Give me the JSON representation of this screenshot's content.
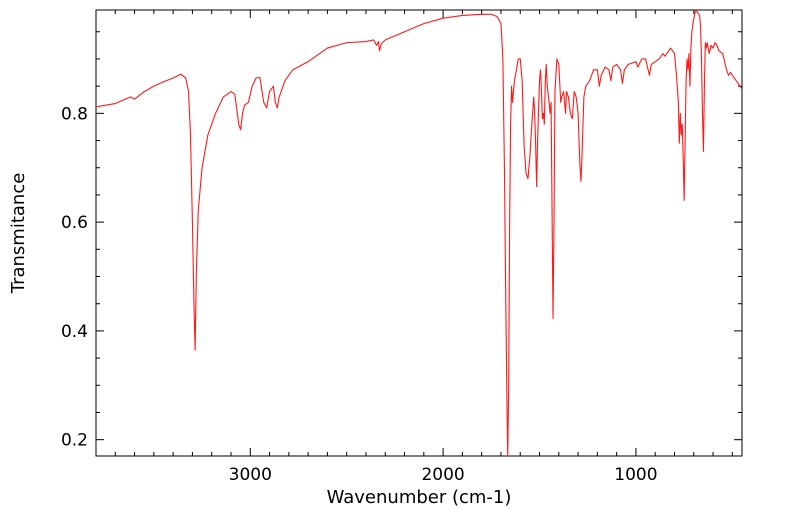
{
  "chart_data": {
    "type": "line",
    "title": "",
    "xlabel": "Wavenumber (cm-1)",
    "ylabel": "Transmitance",
    "xlim": [
      3800,
      450
    ],
    "ylim": [
      0.17,
      0.99
    ],
    "x_reversed": true,
    "grid": false,
    "legend": "none",
    "x_ticks": [
      3000,
      2000,
      1000
    ],
    "x_tick_labels": [
      "3000",
      "2000",
      "1000"
    ],
    "y_ticks": [
      0.2,
      0.4,
      0.6,
      0.8
    ],
    "y_tick_labels": [
      "0.2",
      "0.4",
      "0.6",
      "0.8"
    ],
    "line_color": "#ff1a1a",
    "series": [
      {
        "points": [
          [
            3800,
            0.812
          ],
          [
            3700,
            0.818
          ],
          [
            3650,
            0.826
          ],
          [
            3620,
            0.83
          ],
          [
            3600,
            0.826
          ],
          [
            3550,
            0.84
          ],
          [
            3500,
            0.85
          ],
          [
            3450,
            0.858
          ],
          [
            3400,
            0.865
          ],
          [
            3360,
            0.872
          ],
          [
            3335,
            0.865
          ],
          [
            3320,
            0.84
          ],
          [
            3310,
            0.76
          ],
          [
            3300,
            0.6
          ],
          [
            3292,
            0.45
          ],
          [
            3286,
            0.365
          ],
          [
            3280,
            0.5
          ],
          [
            3270,
            0.62
          ],
          [
            3250,
            0.7
          ],
          [
            3220,
            0.76
          ],
          [
            3180,
            0.8
          ],
          [
            3140,
            0.83
          ],
          [
            3100,
            0.84
          ],
          [
            3080,
            0.835
          ],
          [
            3060,
            0.78
          ],
          [
            3050,
            0.77
          ],
          [
            3040,
            0.8
          ],
          [
            3030,
            0.815
          ],
          [
            3010,
            0.82
          ],
          [
            2990,
            0.85
          ],
          [
            2970,
            0.865
          ],
          [
            2950,
            0.866
          ],
          [
            2930,
            0.82
          ],
          [
            2915,
            0.81
          ],
          [
            2900,
            0.84
          ],
          [
            2880,
            0.85
          ],
          [
            2870,
            0.82
          ],
          [
            2860,
            0.81
          ],
          [
            2850,
            0.83
          ],
          [
            2820,
            0.86
          ],
          [
            2800,
            0.87
          ],
          [
            2780,
            0.88
          ],
          [
            2700,
            0.895
          ],
          [
            2600,
            0.92
          ],
          [
            2500,
            0.93
          ],
          [
            2400,
            0.932
          ],
          [
            2360,
            0.935
          ],
          [
            2345,
            0.925
          ],
          [
            2335,
            0.932
          ],
          [
            2330,
            0.915
          ],
          [
            2320,
            0.928
          ],
          [
            2300,
            0.935
          ],
          [
            2200,
            0.95
          ],
          [
            2100,
            0.965
          ],
          [
            2000,
            0.975
          ],
          [
            1900,
            0.98
          ],
          [
            1800,
            0.982
          ],
          [
            1750,
            0.982
          ],
          [
            1720,
            0.978
          ],
          [
            1700,
            0.965
          ],
          [
            1690,
            0.9
          ],
          [
            1682,
            0.7
          ],
          [
            1676,
            0.49
          ],
          [
            1670,
            0.3
          ],
          [
            1665,
            0.17
          ],
          [
            1660,
            0.3
          ],
          [
            1655,
            0.6
          ],
          [
            1650,
            0.78
          ],
          [
            1645,
            0.85
          ],
          [
            1640,
            0.82
          ],
          [
            1630,
            0.86
          ],
          [
            1620,
            0.88
          ],
          [
            1610,
            0.9
          ],
          [
            1600,
            0.9
          ],
          [
            1590,
            0.86
          ],
          [
            1580,
            0.74
          ],
          [
            1570,
            0.69
          ],
          [
            1560,
            0.68
          ],
          [
            1550,
            0.72
          ],
          [
            1540,
            0.78
          ],
          [
            1530,
            0.83
          ],
          [
            1525,
            0.8
          ],
          [
            1520,
            0.74
          ],
          [
            1515,
            0.665
          ],
          [
            1510,
            0.75
          ],
          [
            1500,
            0.86
          ],
          [
            1495,
            0.88
          ],
          [
            1490,
            0.84
          ],
          [
            1485,
            0.79
          ],
          [
            1480,
            0.8
          ],
          [
            1475,
            0.78
          ],
          [
            1470,
            0.86
          ],
          [
            1465,
            0.89
          ],
          [
            1460,
            0.85
          ],
          [
            1450,
            0.82
          ],
          [
            1445,
            0.8
          ],
          [
            1440,
            0.82
          ],
          [
            1430,
            0.423
          ],
          [
            1425,
            0.6
          ],
          [
            1420,
            0.84
          ],
          [
            1410,
            0.9
          ],
          [
            1400,
            0.89
          ],
          [
            1390,
            0.82
          ],
          [
            1385,
            0.83
          ],
          [
            1375,
            0.84
          ],
          [
            1365,
            0.8
          ],
          [
            1360,
            0.84
          ],
          [
            1350,
            0.83
          ],
          [
            1340,
            0.8
          ],
          [
            1330,
            0.79
          ],
          [
            1320,
            0.84
          ],
          [
            1310,
            0.83
          ],
          [
            1300,
            0.8
          ],
          [
            1290,
            0.7
          ],
          [
            1285,
            0.675
          ],
          [
            1280,
            0.72
          ],
          [
            1270,
            0.83
          ],
          [
            1260,
            0.85
          ],
          [
            1240,
            0.86
          ],
          [
            1220,
            0.88
          ],
          [
            1200,
            0.88
          ],
          [
            1190,
            0.85
          ],
          [
            1180,
            0.87
          ],
          [
            1160,
            0.885
          ],
          [
            1140,
            0.88
          ],
          [
            1130,
            0.86
          ],
          [
            1120,
            0.885
          ],
          [
            1100,
            0.89
          ],
          [
            1080,
            0.88
          ],
          [
            1070,
            0.855
          ],
          [
            1060,
            0.88
          ],
          [
            1040,
            0.89
          ],
          [
            1000,
            0.895
          ],
          [
            990,
            0.885
          ],
          [
            970,
            0.9
          ],
          [
            950,
            0.9
          ],
          [
            930,
            0.87
          ],
          [
            920,
            0.89
          ],
          [
            900,
            0.895
          ],
          [
            880,
            0.9
          ],
          [
            860,
            0.91
          ],
          [
            850,
            0.905
          ],
          [
            840,
            0.91
          ],
          [
            820,
            0.92
          ],
          [
            810,
            0.915
          ],
          [
            800,
            0.91
          ],
          [
            790,
            0.87
          ],
          [
            780,
            0.82
          ],
          [
            775,
            0.745
          ],
          [
            770,
            0.8
          ],
          [
            765,
            0.76
          ],
          [
            760,
            0.78
          ],
          [
            755,
            0.72
          ],
          [
            750,
            0.64
          ],
          [
            745,
            0.75
          ],
          [
            740,
            0.86
          ],
          [
            735,
            0.9
          ],
          [
            730,
            0.88
          ],
          [
            725,
            0.91
          ],
          [
            720,
            0.85
          ],
          [
            715,
            0.92
          ],
          [
            710,
            0.95
          ],
          [
            700,
            0.975
          ],
          [
            690,
            0.99
          ],
          [
            680,
            0.985
          ],
          [
            670,
            0.98
          ],
          [
            665,
            0.96
          ],
          [
            660,
            0.9
          ],
          [
            655,
            0.8
          ],
          [
            650,
            0.73
          ],
          [
            645,
            0.85
          ],
          [
            640,
            0.93
          ],
          [
            635,
            0.92
          ],
          [
            630,
            0.93
          ],
          [
            620,
            0.91
          ],
          [
            610,
            0.925
          ],
          [
            600,
            0.92
          ],
          [
            590,
            0.93
          ],
          [
            580,
            0.925
          ],
          [
            570,
            0.915
          ],
          [
            550,
            0.91
          ],
          [
            530,
            0.88
          ],
          [
            520,
            0.87
          ],
          [
            510,
            0.875
          ],
          [
            500,
            0.87
          ],
          [
            480,
            0.86
          ],
          [
            460,
            0.85
          ],
          [
            450,
            0.845
          ]
        ]
      }
    ]
  }
}
